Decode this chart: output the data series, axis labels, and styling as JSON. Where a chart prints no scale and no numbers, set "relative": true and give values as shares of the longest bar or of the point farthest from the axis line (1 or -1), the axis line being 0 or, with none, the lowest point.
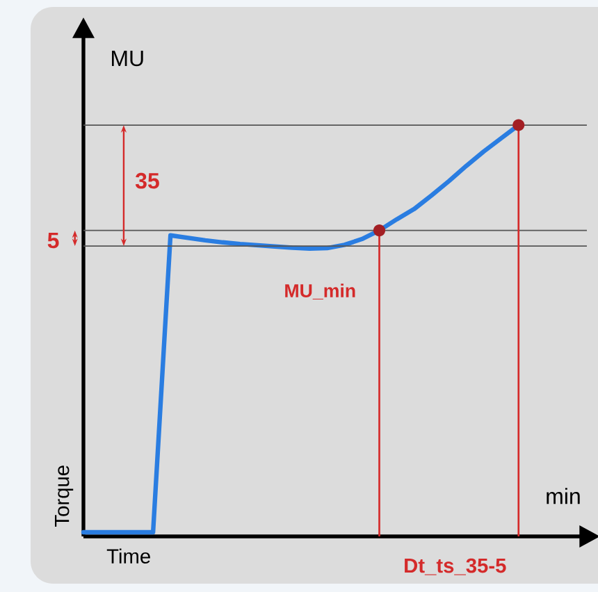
{
  "chart_data": {
    "type": "line",
    "relative": true,
    "xlabel": "Time",
    "ylabel": "Torque",
    "categories": [
      null,
      null,
      null,
      null,
      null,
      null,
      null,
      null,
      null,
      null,
      null,
      null,
      null,
      null,
      null,
      null,
      null,
      null,
      null,
      null,
      null,
      null,
      null,
      null,
      null,
      null
    ],
    "series": [
      {
        "color": "#2a7de1",
        "values": [
          0.01,
          0.01,
          0.01,
          0.01,
          0.01,
          0.732,
          0.726,
          0.72,
          0.715,
          0.711,
          0.708,
          0.705,
          0.702,
          0.7,
          0.701,
          0.709,
          0.723,
          0.744,
          0.771,
          0.796,
          0.829,
          0.864,
          0.901,
          0.936,
          0.968,
          1
        ]
      }
    ],
    "ref_lines": [
      {
        "axis": "y",
        "value": 1,
        "color": "#555555"
      },
      {
        "axis": "y",
        "value": 0.744,
        "color": "#555555"
      },
      {
        "axis": "y",
        "value": 0.706,
        "color": "#555555"
      }
    ],
    "annotations": [
      "MU",
      "min",
      "35",
      "5",
      "MU_min",
      "Dt_ts_35-5"
    ]
  }
}
